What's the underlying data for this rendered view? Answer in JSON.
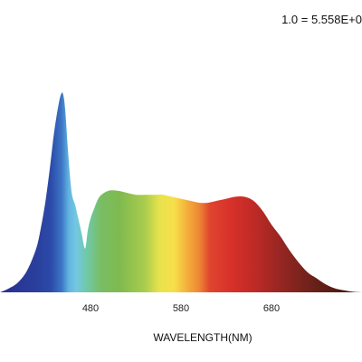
{
  "chart_data": {
    "type": "area",
    "title": "",
    "scale_note": "1.0 = 5.558E+0",
    "xlabel": "WAVELENGTH(NM)",
    "ylabel": "",
    "xlim": [
      380,
      780
    ],
    "ylim": [
      0,
      1.0
    ],
    "xticks": [
      480,
      580,
      680
    ],
    "grid": false,
    "legend": "none",
    "fill": "visible spectrum gradient (violet-blue through red to dark brown)",
    "series": [
      {
        "values_x": [
          380,
          390,
          400,
          410,
          420,
          425,
          430,
          435,
          440,
          445,
          448,
          450,
          452,
          455,
          458,
          460,
          463,
          466,
          470,
          474,
          477,
          480,
          484,
          490,
          500,
          510,
          520,
          530,
          540,
          550,
          560,
          570,
          580,
          590,
          600,
          610,
          620,
          630,
          640,
          650,
          660,
          670,
          680,
          690,
          700,
          710,
          720,
          730,
          740,
          750,
          760,
          770,
          780
        ],
        "values_y": [
          0.0,
          0.02,
          0.05,
          0.11,
          0.22,
          0.32,
          0.45,
          0.62,
          0.81,
          0.95,
          1.0,
          0.99,
          0.92,
          0.72,
          0.55,
          0.48,
          0.44,
          0.38,
          0.3,
          0.22,
          0.31,
          0.37,
          0.42,
          0.48,
          0.51,
          0.51,
          0.5,
          0.49,
          0.49,
          0.49,
          0.49,
          0.48,
          0.47,
          0.46,
          0.45,
          0.45,
          0.46,
          0.47,
          0.48,
          0.48,
          0.46,
          0.41,
          0.34,
          0.28,
          0.21,
          0.15,
          0.1,
          0.07,
          0.04,
          0.02,
          0.01,
          0.003,
          0.0
        ]
      }
    ]
  }
}
